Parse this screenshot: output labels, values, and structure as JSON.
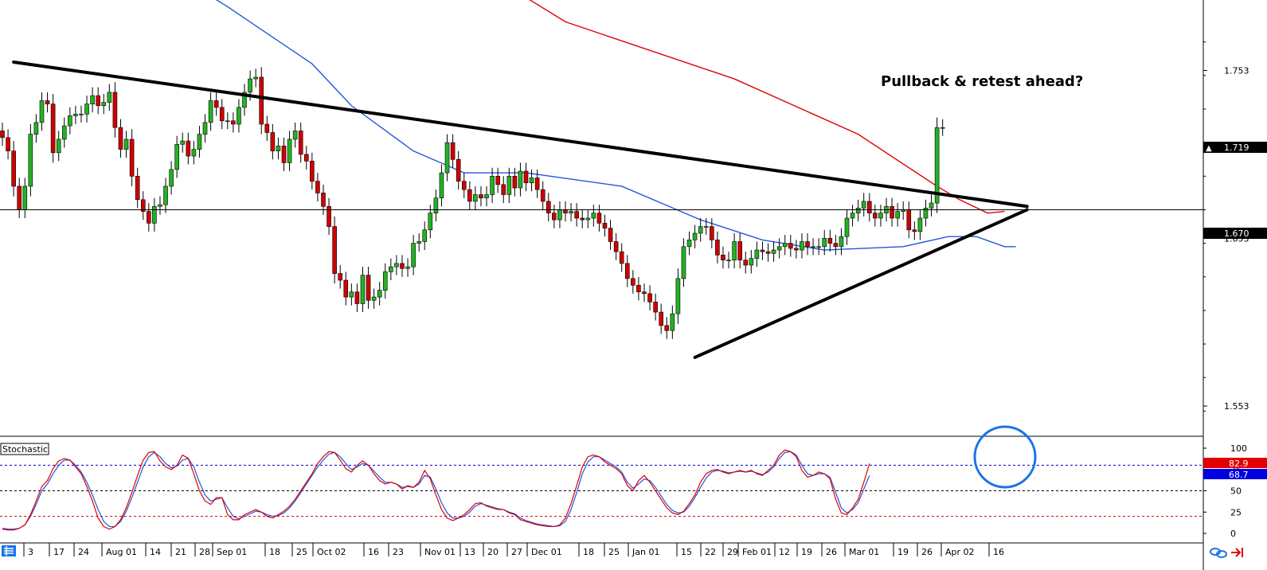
{
  "chart_data": [
    {
      "type": "candlestick",
      "annotation": "Pullback & retest ahead?",
      "current_price": "1.719",
      "level_price": "1.670",
      "y_ticks": [
        "1.753",
        "1.653",
        "1.553"
      ],
      "ylim": [
        1.535,
        1.795
      ],
      "x_ticks": [
        "3",
        "17",
        "24",
        "Aug 01",
        "14",
        "21",
        "28",
        "Sep 01",
        "18",
        "25",
        "Oct 02",
        "16",
        "23",
        "Nov 01",
        "13",
        "20",
        "27",
        "Dec 01",
        "18",
        "25",
        "Jan 01",
        "15",
        "22",
        "29",
        "Feb 01",
        "12",
        "19",
        "26",
        "Mar 01",
        "19",
        "26",
        "Apr 02",
        "16"
      ],
      "horizontal_level": 1.67,
      "trendlines": [
        {
          "name": "descending resistance",
          "from": [
            2,
            1.758
          ],
          "to": [
            182,
            1.672
          ]
        },
        {
          "name": "ascending support",
          "from": [
            123,
            1.582
          ],
          "to": [
            182,
            1.67
          ]
        }
      ],
      "ma_red": [
        [
          72,
          1.84
        ],
        [
          100,
          1.782
        ],
        [
          130,
          1.748
        ],
        [
          152,
          1.715
        ],
        [
          166,
          1.684
        ],
        [
          170,
          1.676
        ],
        [
          175,
          1.668
        ],
        [
          178,
          1.669
        ]
      ],
      "ma_blue": [
        [
          26,
          1.82
        ],
        [
          40,
          1.791
        ],
        [
          55,
          1.757
        ],
        [
          62,
          1.732
        ],
        [
          73,
          1.705
        ],
        [
          82,
          1.692
        ],
        [
          93,
          1.692
        ],
        [
          110,
          1.684
        ],
        [
          124,
          1.664
        ],
        [
          135,
          1.652
        ],
        [
          146,
          1.646
        ],
        [
          160,
          1.648
        ],
        [
          168,
          1.654
        ],
        [
          173,
          1.654
        ],
        [
          178,
          1.648
        ],
        [
          180,
          1.648
        ]
      ],
      "closes": [
        1.713,
        1.705,
        1.684,
        1.67,
        1.684,
        1.715,
        1.722,
        1.735,
        1.733,
        1.704,
        1.712,
        1.72,
        1.726,
        1.727,
        1.727,
        1.733,
        1.738,
        1.732,
        1.734,
        1.74,
        1.719,
        1.706,
        1.712,
        1.69,
        1.676,
        1.669,
        1.662,
        1.672,
        1.673,
        1.684,
        1.694,
        1.709,
        1.711,
        1.702,
        1.706,
        1.715,
        1.722,
        1.735,
        1.731,
        1.723,
        1.723,
        1.721,
        1.731,
        1.74,
        1.748,
        1.749,
        1.721,
        1.716,
        1.705,
        1.708,
        1.698,
        1.712,
        1.717,
        1.703,
        1.699,
        1.687,
        1.68,
        1.672,
        1.66,
        1.632,
        1.628,
        1.618,
        1.621,
        1.614,
        1.631,
        1.616,
        1.618,
        1.622,
        1.633,
        1.636,
        1.638,
        1.635,
        1.636,
        1.65,
        1.651,
        1.658,
        1.668,
        1.677,
        1.692,
        1.71,
        1.7,
        1.687,
        1.682,
        1.675,
        1.679,
        1.677,
        1.679,
        1.69,
        1.685,
        1.679,
        1.69,
        1.683,
        1.693,
        1.686,
        1.689,
        1.682,
        1.675,
        1.668,
        1.664,
        1.67,
        1.668,
        1.669,
        1.665,
        1.664,
        1.665,
        1.668,
        1.662,
        1.659,
        1.651,
        1.645,
        1.638,
        1.629,
        1.625,
        1.621,
        1.62,
        1.615,
        1.609,
        1.601,
        1.598,
        1.608,
        1.629,
        1.648,
        1.652,
        1.656,
        1.66,
        1.66,
        1.652,
        1.643,
        1.64,
        1.64,
        1.651,
        1.64,
        1.637,
        1.641,
        1.646,
        1.645,
        1.644,
        1.646,
        1.648,
        1.65,
        1.647,
        1.646,
        1.651,
        1.648,
        1.648,
        1.648,
        1.653,
        1.65,
        1.648,
        1.654,
        1.665,
        1.668,
        1.671,
        1.675,
        1.668,
        1.665,
        1.668,
        1.672,
        1.665,
        1.669,
        1.67,
        1.658,
        1.657,
        1.665,
        1.671,
        1.674,
        1.719,
        1.719
      ],
      "stochastic": {
        "label": "Stochastic",
        "ylim": [
          0,
          100
        ],
        "y_ticks": [
          "100",
          "75",
          "50",
          "25",
          "0"
        ],
        "levels": [
          80,
          20
        ],
        "k_value": "82.9",
        "d_value": "68.7",
        "k": [
          5,
          4,
          4,
          6,
          10,
          22,
          38,
          55,
          62,
          76,
          85,
          88,
          86,
          78,
          70,
          55,
          38,
          18,
          8,
          5,
          8,
          16,
          30,
          48,
          68,
          86,
          95,
          96,
          85,
          78,
          75,
          80,
          92,
          88,
          70,
          50,
          38,
          34,
          42,
          42,
          22,
          16,
          16,
          22,
          25,
          28,
          25,
          20,
          18,
          22,
          26,
          32,
          40,
          50,
          60,
          70,
          82,
          90,
          96,
          95,
          86,
          76,
          72,
          80,
          85,
          80,
          70,
          62,
          58,
          60,
          58,
          52,
          56,
          54,
          60,
          74,
          64,
          45,
          28,
          18,
          15,
          18,
          22,
          28,
          35,
          36,
          32,
          30,
          28,
          28,
          24,
          22,
          16,
          14,
          12,
          10,
          9,
          8,
          8,
          10,
          18,
          35,
          56,
          78,
          90,
          92,
          90,
          84,
          80,
          76,
          70,
          56,
          50,
          62,
          68,
          60,
          50,
          40,
          30,
          24,
          22,
          26,
          35,
          45,
          60,
          70,
          74,
          75,
          72,
          70,
          72,
          74,
          72,
          74,
          70,
          68,
          74,
          80,
          92,
          98,
          96,
          90,
          74,
          66,
          68,
          72,
          70,
          64,
          40,
          24,
          22,
          30,
          40,
          60,
          82
        ],
        "d": [
          6,
          5,
          5,
          6,
          10,
          20,
          34,
          50,
          58,
          70,
          80,
          86,
          86,
          80,
          72,
          60,
          45,
          28,
          14,
          8,
          8,
          14,
          26,
          42,
          60,
          78,
          90,
          95,
          90,
          82,
          77,
          79,
          86,
          88,
          78,
          60,
          45,
          38,
          40,
          42,
          30,
          20,
          17,
          20,
          23,
          26,
          25,
          22,
          20,
          21,
          24,
          30,
          38,
          48,
          58,
          68,
          78,
          86,
          93,
          95,
          90,
          82,
          75,
          78,
          82,
          80,
          73,
          66,
          60,
          60,
          58,
          54,
          55,
          54,
          58,
          68,
          66,
          52,
          36,
          24,
          18,
          18,
          20,
          25,
          32,
          35,
          33,
          31,
          29,
          28,
          25,
          23,
          18,
          15,
          13,
          11,
          10,
          9,
          8,
          9,
          14,
          28,
          48,
          70,
          84,
          90,
          90,
          86,
          82,
          78,
          72,
          60,
          53,
          58,
          64,
          62,
          54,
          44,
          34,
          27,
          24,
          25,
          32,
          42,
          54,
          65,
          72,
          74,
          73,
          71,
          72,
          73,
          72,
          73,
          71,
          69,
          72,
          78,
          88,
          95,
          96,
          92,
          80,
          70,
          68,
          70,
          70,
          66,
          48,
          30,
          24,
          28,
          36,
          52,
          68
        ]
      }
    }
  ],
  "toolbar_icons": [
    "grid-icon",
    "link-icon",
    "arrow-right-icon"
  ]
}
